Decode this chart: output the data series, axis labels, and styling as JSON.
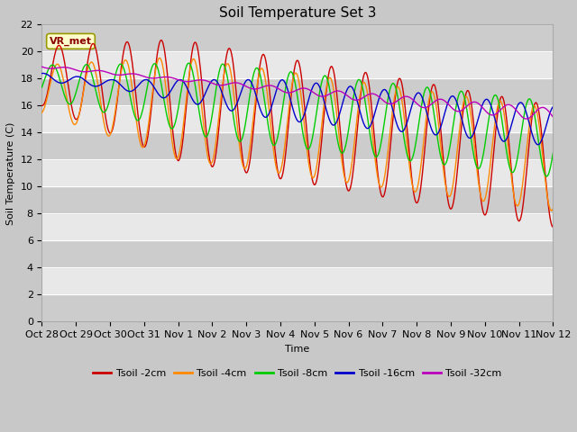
{
  "title": "Soil Temperature Set 3",
  "xlabel": "Time",
  "ylabel": "Soil Temperature (C)",
  "ylim": [
    0,
    22
  ],
  "yticks": [
    0,
    2,
    4,
    6,
    8,
    10,
    12,
    14,
    16,
    18,
    20,
    22
  ],
  "xtick_labels": [
    "Oct 28",
    "Oct 29",
    "Oct 30",
    "Oct 31",
    "Nov 1",
    "Nov 2",
    "Nov 3",
    "Nov 4",
    "Nov 5",
    "Nov 6",
    "Nov 7",
    "Nov 8",
    "Nov 9",
    "Nov 10",
    "Nov 11",
    "Nov 12"
  ],
  "legend_labels": [
    "Tsoil -2cm",
    "Tsoil -4cm",
    "Tsoil -8cm",
    "Tsoil -16cm",
    "Tsoil -32cm"
  ],
  "colors": [
    "#cc0000",
    "#ff8800",
    "#00cc00",
    "#0000cc",
    "#bb00bb"
  ],
  "annotation_text": "VR_met",
  "annotation_bg": "#ffffcc",
  "annotation_border": "#999900",
  "title_fontsize": 11,
  "label_fontsize": 8,
  "tick_fontsize": 8
}
